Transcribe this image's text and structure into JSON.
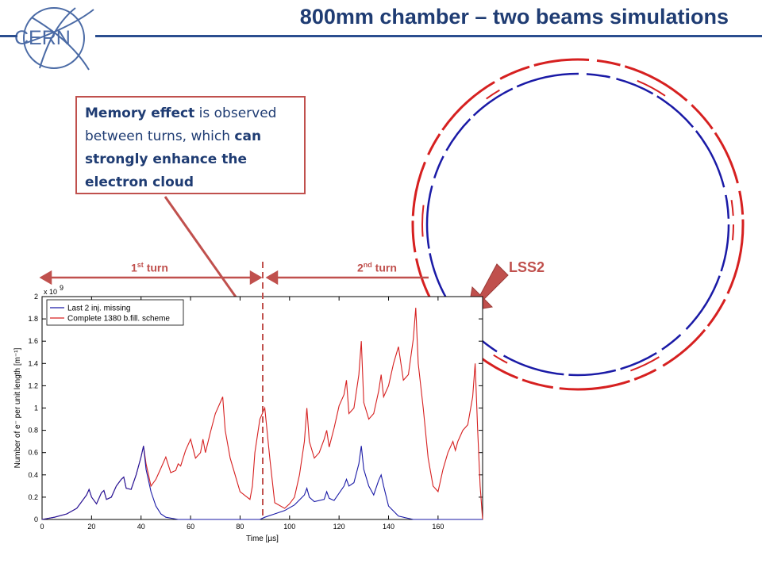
{
  "header": {
    "logo_text": "CERN",
    "title": "800mm chamber – two beams simulations"
  },
  "callout": {
    "part1": "Memory effect",
    "part2": " is observed between turns, which ",
    "part3": "can strongly enhance the electron cloud"
  },
  "annotations": {
    "first_turn": "1",
    "first_turn_sup": "st",
    "first_turn_word": " turn",
    "second_turn": "2",
    "second_turn_sup": "nd",
    "second_turn_word": " turn",
    "lss2": "LSS2"
  },
  "colors": {
    "accent_red": "#c0504d",
    "title_blue": "#1f3c73",
    "series_red": "#d62020",
    "series_blue": "#1a1aa6"
  },
  "chart_data": {
    "type": "line",
    "xlabel": "Time [µs]",
    "ylabel": "Number of e⁻ per unit length [m⁻¹]",
    "y_multiplier": "x 10",
    "y_multiplier_exp": "9",
    "xlim": [
      0,
      178
    ],
    "ylim": [
      0,
      2
    ],
    "xticks": [
      0,
      20,
      40,
      60,
      80,
      100,
      120,
      140,
      160
    ],
    "yticks": [
      0,
      0.2,
      0.4,
      0.6,
      0.8,
      1,
      1.2,
      1.4,
      1.6,
      1.8,
      2
    ],
    "legend_position": "top-left",
    "turn_boundary_x": 88,
    "series": [
      {
        "name": "Last 2 inj. missing",
        "color": "#1a1aa6",
        "x": [
          0,
          5,
          10,
          14,
          18,
          19,
          20,
          22,
          24,
          25,
          26,
          28,
          30,
          32,
          33,
          34,
          36,
          38,
          40,
          41,
          42,
          44,
          46,
          48,
          50,
          55,
          60,
          70,
          80,
          88,
          90,
          94,
          98,
          102,
          106,
          107,
          108,
          110,
          114,
          115,
          116,
          118,
          122,
          123,
          124,
          126,
          128,
          129,
          130,
          132,
          134,
          136,
          137,
          138,
          140,
          144,
          150,
          160,
          170,
          175,
          176,
          177,
          178
        ],
        "y": [
          0,
          0.02,
          0.05,
          0.1,
          0.22,
          0.27,
          0.2,
          0.14,
          0.24,
          0.26,
          0.18,
          0.2,
          0.3,
          0.36,
          0.38,
          0.28,
          0.27,
          0.4,
          0.56,
          0.66,
          0.45,
          0.25,
          0.12,
          0.05,
          0.02,
          0,
          0,
          0,
          0,
          0,
          0.02,
          0.05,
          0.08,
          0.13,
          0.22,
          0.28,
          0.2,
          0.16,
          0.18,
          0.25,
          0.19,
          0.17,
          0.3,
          0.36,
          0.3,
          0.33,
          0.5,
          0.66,
          0.45,
          0.3,
          0.22,
          0.35,
          0.4,
          0.3,
          0.12,
          0.03,
          0,
          0,
          0,
          0,
          0,
          0,
          0
        ]
      },
      {
        "name": "Complete 1380 b.fill. scheme",
        "color": "#d62020",
        "x": [
          0,
          5,
          10,
          14,
          18,
          19,
          20,
          22,
          24,
          25,
          26,
          28,
          30,
          32,
          33,
          34,
          36,
          38,
          40,
          41,
          42,
          44,
          46,
          48,
          50,
          52,
          54,
          55,
          56,
          58,
          60,
          62,
          64,
          65,
          66,
          68,
          70,
          72,
          73,
          74,
          76,
          80,
          84,
          85,
          86,
          88,
          90,
          92,
          94,
          98,
          100,
          102,
          104,
          106,
          107,
          108,
          110,
          112,
          114,
          115,
          116,
          118,
          120,
          122,
          123,
          124,
          126,
          128,
          129,
          130,
          132,
          134,
          136,
          137,
          138,
          140,
          142,
          144,
          146,
          148,
          150,
          151,
          152,
          154,
          156,
          158,
          160,
          162,
          164,
          166,
          167,
          168,
          170,
          172,
          174,
          175,
          176,
          177,
          178
        ],
        "y": [
          0,
          0.02,
          0.05,
          0.1,
          0.22,
          0.27,
          0.2,
          0.14,
          0.24,
          0.26,
          0.18,
          0.2,
          0.3,
          0.36,
          0.38,
          0.28,
          0.27,
          0.4,
          0.56,
          0.66,
          0.5,
          0.3,
          0.36,
          0.46,
          0.56,
          0.42,
          0.44,
          0.5,
          0.48,
          0.62,
          0.72,
          0.55,
          0.6,
          0.72,
          0.6,
          0.78,
          0.95,
          1.05,
          1.1,
          0.8,
          0.55,
          0.25,
          0.18,
          0.3,
          0.6,
          0.9,
          1.0,
          0.55,
          0.15,
          0.1,
          0.14,
          0.2,
          0.4,
          0.7,
          1.0,
          0.7,
          0.55,
          0.6,
          0.72,
          0.8,
          0.65,
          0.82,
          1.02,
          1.12,
          1.25,
          0.95,
          1.0,
          1.3,
          1.6,
          1.05,
          0.9,
          0.95,
          1.15,
          1.3,
          1.1,
          1.2,
          1.4,
          1.55,
          1.25,
          1.3,
          1.62,
          1.9,
          1.4,
          1.0,
          0.55,
          0.3,
          0.25,
          0.45,
          0.6,
          0.7,
          0.62,
          0.7,
          0.8,
          0.85,
          1.1,
          1.4,
          0.8,
          0.3,
          0
        ]
      }
    ]
  }
}
